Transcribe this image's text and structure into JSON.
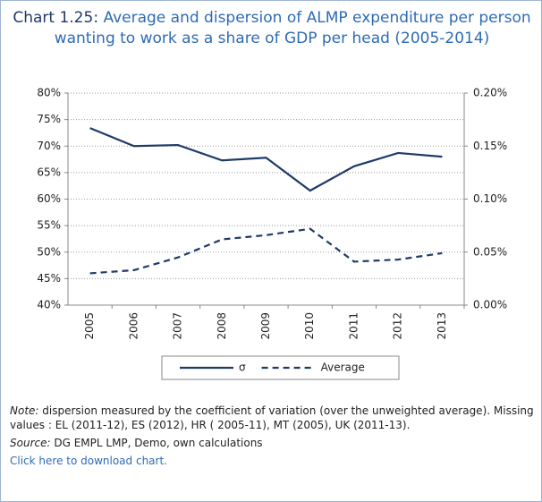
{
  "chart_data": {
    "type": "line",
    "title_prefix": "Chart 1.25:",
    "title": "Average and dispersion of ALMP expenditure per person wanting to work as a share of GDP per head  (2005-2014)",
    "categories": [
      "2005",
      "2006",
      "2007",
      "2008",
      "2009",
      "2010",
      "2011",
      "2012",
      "2013"
    ],
    "series": [
      {
        "name": "σ",
        "color": "#1f3a68",
        "dash": false,
        "values": [
          73.4,
          70.0,
          70.2,
          67.3,
          67.8,
          61.6,
          66.2,
          68.7,
          68.0
        ]
      },
      {
        "name": "Average",
        "color": "#1f3a68",
        "dash": true,
        "axis": "y2",
        "values": [
          0.03,
          0.033,
          0.045,
          0.062,
          0.066,
          0.072,
          0.041,
          0.043,
          0.049
        ]
      }
    ],
    "ylim": [
      40,
      80
    ],
    "yticks": [
      {
        "value": 40,
        "label": "40%"
      },
      {
        "value": 45,
        "label": "45%"
      },
      {
        "value": 50,
        "label": "50%"
      },
      {
        "value": 55,
        "label": "55%"
      },
      {
        "value": 60,
        "label": "60%"
      },
      {
        "value": 65,
        "label": "65%"
      },
      {
        "value": 70,
        "label": "70%"
      },
      {
        "value": 75,
        "label": "75%"
      },
      {
        "value": 80,
        "label": "80%"
      }
    ],
    "y2lim": [
      0,
      0.2
    ],
    "y2ticks": [
      {
        "value": 0,
        "label": "0.00%"
      },
      {
        "value": 0.05,
        "label": "0.05%"
      },
      {
        "value": 0.1,
        "label": "0.10%"
      },
      {
        "value": 0.15,
        "label": "0.15%"
      },
      {
        "value": 0.2,
        "label": "0.20%"
      }
    ],
    "grid": true
  },
  "notes": {
    "note_label": "Note:",
    "note": "dispersion measured by the coefficient of variation (over the unweighted average). Missing values : EL (2011-12), ES (2012), HR ( 2005-11), MT (2005), UK (2011-13).",
    "source_label": "Source:",
    "source": "DG EMPL LMP, Demo, own calculations",
    "link": "Click here to download chart."
  }
}
